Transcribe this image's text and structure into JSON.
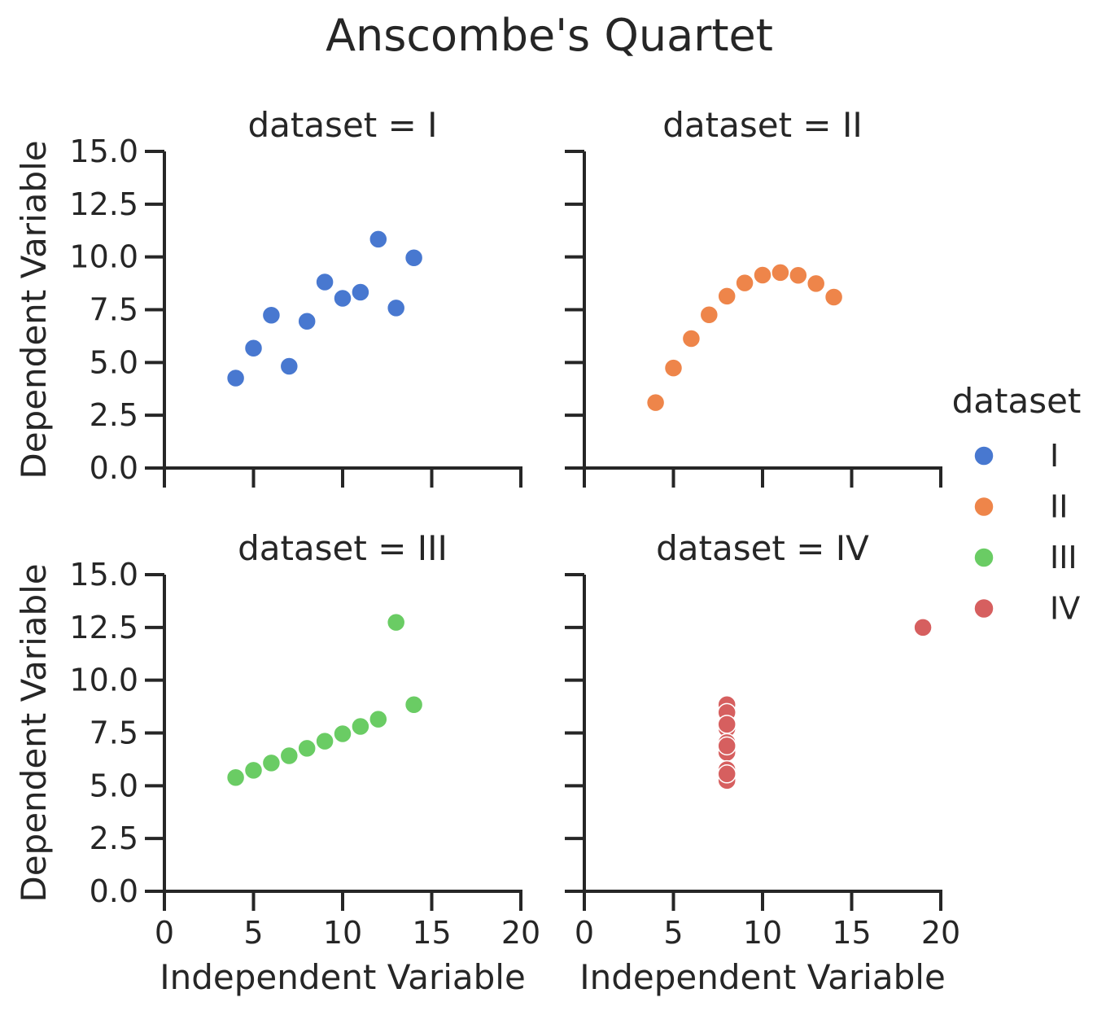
{
  "chart_data": {
    "type": "scatter",
    "title": "Anscombe's Quartet",
    "xlabel": "Independent Variable",
    "ylabel": "Dependent Variable",
    "xlim": [
      0,
      20
    ],
    "ylim": [
      0,
      15
    ],
    "x_ticks": [
      "0",
      "5",
      "10",
      "15",
      "20"
    ],
    "y_ticks": [
      "0.0",
      "2.5",
      "5.0",
      "7.5",
      "10.0",
      "12.5",
      "15.0"
    ],
    "grid": false,
    "legend": {
      "title": "dataset",
      "position": "right",
      "entries": [
        {
          "label": "I",
          "color": "#4878d0"
        },
        {
          "label": "II",
          "color": "#ee854a"
        },
        {
          "label": "III",
          "color": "#6acc64"
        },
        {
          "label": "IV",
          "color": "#d65f5f"
        }
      ]
    },
    "facets": [
      {
        "title": "dataset = I",
        "series": "I",
        "color": "#4878d0",
        "points": [
          [
            10,
            8.04
          ],
          [
            8,
            6.95
          ],
          [
            13,
            7.58
          ],
          [
            9,
            8.81
          ],
          [
            11,
            8.33
          ],
          [
            14,
            9.96
          ],
          [
            6,
            7.24
          ],
          [
            4,
            4.26
          ],
          [
            12,
            10.84
          ],
          [
            7,
            4.82
          ],
          [
            5,
            5.68
          ]
        ]
      },
      {
        "title": "dataset = II",
        "series": "II",
        "color": "#ee854a",
        "points": [
          [
            10,
            9.14
          ],
          [
            8,
            8.14
          ],
          [
            13,
            8.74
          ],
          [
            9,
            8.77
          ],
          [
            11,
            9.26
          ],
          [
            14,
            8.1
          ],
          [
            6,
            6.13
          ],
          [
            4,
            3.1
          ],
          [
            12,
            9.13
          ],
          [
            7,
            7.26
          ],
          [
            5,
            4.74
          ]
        ]
      },
      {
        "title": "dataset = III",
        "series": "III",
        "color": "#6acc64",
        "points": [
          [
            10,
            7.46
          ],
          [
            8,
            6.77
          ],
          [
            13,
            12.74
          ],
          [
            9,
            7.11
          ],
          [
            11,
            7.81
          ],
          [
            14,
            8.84
          ],
          [
            6,
            6.08
          ],
          [
            4,
            5.39
          ],
          [
            12,
            8.15
          ],
          [
            7,
            6.42
          ],
          [
            5,
            5.73
          ]
        ]
      },
      {
        "title": "dataset = IV",
        "series": "IV",
        "color": "#d65f5f",
        "points": [
          [
            8,
            6.58
          ],
          [
            8,
            5.76
          ],
          [
            8,
            7.71
          ],
          [
            8,
            8.84
          ],
          [
            8,
            8.47
          ],
          [
            8,
            7.04
          ],
          [
            8,
            5.25
          ],
          [
            19,
            12.5
          ],
          [
            8,
            5.56
          ],
          [
            8,
            7.91
          ],
          [
            8,
            6.89
          ]
        ]
      }
    ]
  }
}
